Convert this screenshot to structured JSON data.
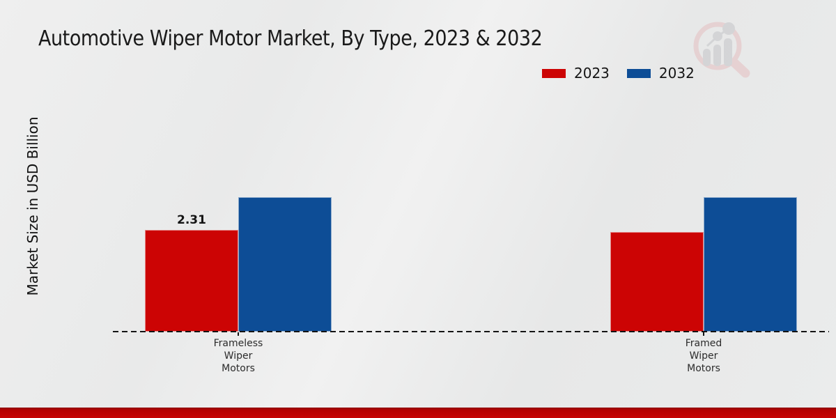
{
  "page": {
    "title": "Automotive Wiper Motor Market, By Type, 2023 & 2032",
    "y_axis_label": "Market Size in USD Billion"
  },
  "colors": {
    "series_2023": "#cc0404",
    "series_2032": "#0d4d96",
    "background": "#eaebeb",
    "bottom_stripe": "#c00303",
    "axis": "#141414"
  },
  "watermark_icon": "magnifier-bar-chart-logo-icon",
  "chart_data": {
    "type": "bar",
    "title": "Automotive Wiper Motor Market, By Type, 2023 & 2032",
    "xlabel": "",
    "ylabel": "Market Size in USD Billion",
    "categories": [
      "Frameless Wiper Motors",
      "Framed Wiper Motors"
    ],
    "series": [
      {
        "name": "2023",
        "color": "#cc0404",
        "values": [
          2.31,
          2.26
        ]
      },
      {
        "name": "2032",
        "color": "#0d4d96",
        "values": [
          3.05,
          3.05
        ]
      }
    ],
    "bar_value_labels": [
      {
        "series": 0,
        "category": 0,
        "text": "2.31"
      }
    ],
    "ylim": [
      0,
      3.6
    ],
    "grid": false,
    "legend_position": "top-right",
    "baseline_style": "dashed",
    "y_axis_ticks_visible": false
  }
}
